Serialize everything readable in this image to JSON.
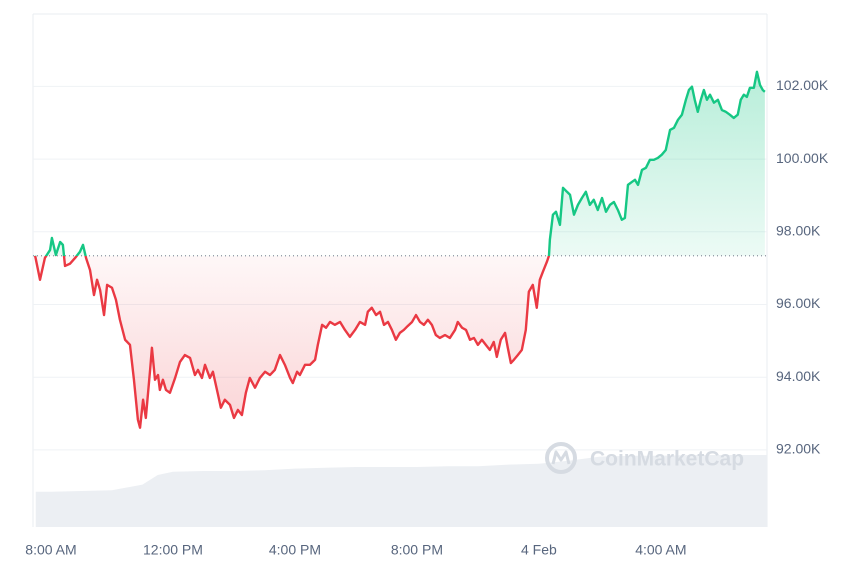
{
  "chart_data": {
    "type": "line",
    "xlim": [
      -0.59,
      23.48
    ],
    "xticks": [
      {
        "value": 0,
        "label": "8:00 AM"
      },
      {
        "value": 4,
        "label": "12:00 PM"
      },
      {
        "value": 8,
        "label": "4:00 PM"
      },
      {
        "value": 12,
        "label": "8:00 PM"
      },
      {
        "value": 16,
        "label": "4 Feb"
      },
      {
        "value": 20,
        "label": "4:00 AM"
      }
    ],
    "ylim": [
      89.88,
      103.99
    ],
    "yticks": [
      {
        "value": 92,
        "label": "92.00K"
      },
      {
        "value": 94,
        "label": "94.00K"
      },
      {
        "value": 96,
        "label": "96.00K"
      },
      {
        "value": 98,
        "label": "98.00K"
      },
      {
        "value": 100,
        "label": "100.00K"
      },
      {
        "value": 102,
        "label": "102.00K"
      }
    ],
    "grid": true,
    "baseline": 97.34,
    "up_color": "#16c784",
    "down_color": "#ea3943",
    "watermark": "CoinMarketCap",
    "x": [
      -0.52,
      -0.36,
      -0.2,
      -0.03,
      0.03,
      0.16,
      0.3,
      0.39,
      0.46,
      0.62,
      0.79,
      0.95,
      1.05,
      1.15,
      1.28,
      1.41,
      1.51,
      1.61,
      1.74,
      1.84,
      2.0,
      2.13,
      2.26,
      2.43,
      2.59,
      2.72,
      2.85,
      2.92,
      3.02,
      3.11,
      3.25,
      3.31,
      3.41,
      3.51,
      3.57,
      3.67,
      3.77,
      3.9,
      4.07,
      4.23,
      4.39,
      4.56,
      4.72,
      4.82,
      4.95,
      5.05,
      5.21,
      5.31,
      5.48,
      5.57,
      5.7,
      5.87,
      6.0,
      6.13,
      6.26,
      6.39,
      6.52,
      6.69,
      6.85,
      7.02,
      7.18,
      7.34,
      7.51,
      7.67,
      7.84,
      7.93,
      8.07,
      8.16,
      8.33,
      8.49,
      8.66,
      8.75,
      8.89,
      9.02,
      9.15,
      9.31,
      9.48,
      9.64,
      9.8,
      9.97,
      10.13,
      10.3,
      10.39,
      10.52,
      10.66,
      10.79,
      10.92,
      11.05,
      11.18,
      11.31,
      11.44,
      11.57,
      11.7,
      11.84,
      11.97,
      12.1,
      12.23,
      12.36,
      12.49,
      12.62,
      12.75,
      12.92,
      13.08,
      13.25,
      13.34,
      13.48,
      13.61,
      13.74,
      13.87,
      14.0,
      14.13,
      14.26,
      14.39,
      14.52,
      14.62,
      14.75,
      14.89,
      14.98,
      15.08,
      15.18,
      15.31,
      15.44,
      15.57,
      15.67,
      15.8,
      15.93,
      16.03,
      16.13,
      16.26,
      16.33,
      16.36,
      16.46,
      16.56,
      16.69,
      16.79,
      16.92,
      17.02,
      17.15,
      17.28,
      17.41,
      17.54,
      17.67,
      17.8,
      17.93,
      18.07,
      18.2,
      18.33,
      18.46,
      18.59,
      18.72,
      18.82,
      18.92,
      19.05,
      19.15,
      19.25,
      19.38,
      19.51,
      19.64,
      19.77,
      19.9,
      20.03,
      20.16,
      20.3,
      20.43,
      20.56,
      20.69,
      20.82,
      20.92,
      21.02,
      21.11,
      21.21,
      21.31,
      21.41,
      21.51,
      21.61,
      21.74,
      21.87,
      22.0,
      22.13,
      22.26,
      22.39,
      22.52,
      22.62,
      22.72,
      22.82,
      22.92,
      23.05,
      23.15,
      23.25,
      23.34,
      23.41
    ],
    "values": [
      97.34,
      96.68,
      97.28,
      97.5,
      97.83,
      97.36,
      97.72,
      97.64,
      97.06,
      97.12,
      97.28,
      97.45,
      97.64,
      97.28,
      96.95,
      96.26,
      96.68,
      96.4,
      95.71,
      96.54,
      96.46,
      96.13,
      95.58,
      95.03,
      94.89,
      93.93,
      92.83,
      92.61,
      93.38,
      92.88,
      94.2,
      94.81,
      93.93,
      94.06,
      93.65,
      93.93,
      93.65,
      93.57,
      93.98,
      94.42,
      94.61,
      94.53,
      94.06,
      94.2,
      93.98,
      94.34,
      93.98,
      94.15,
      93.51,
      93.16,
      93.38,
      93.24,
      92.88,
      93.1,
      92.96,
      93.57,
      93.98,
      93.71,
      93.98,
      94.15,
      94.06,
      94.2,
      94.61,
      94.34,
      93.98,
      93.84,
      94.15,
      94.06,
      94.34,
      94.34,
      94.48,
      94.89,
      95.44,
      95.36,
      95.52,
      95.44,
      95.52,
      95.3,
      95.11,
      95.3,
      95.52,
      95.44,
      95.8,
      95.91,
      95.71,
      95.8,
      95.44,
      95.52,
      95.3,
      95.03,
      95.22,
      95.3,
      95.41,
      95.52,
      95.71,
      95.52,
      95.44,
      95.58,
      95.44,
      95.16,
      95.08,
      95.16,
      95.08,
      95.3,
      95.52,
      95.36,
      95.3,
      95.03,
      95.08,
      94.89,
      95.03,
      94.89,
      94.75,
      94.97,
      94.56,
      95.03,
      95.22,
      94.81,
      94.39,
      94.48,
      94.61,
      94.75,
      95.3,
      96.35,
      96.54,
      95.91,
      96.68,
      96.9,
      97.17,
      97.34,
      97.78,
      98.47,
      98.55,
      98.19,
      99.21,
      99.1,
      99.02,
      98.47,
      98.74,
      98.93,
      99.1,
      98.74,
      98.88,
      98.6,
      98.93,
      98.55,
      98.74,
      98.82,
      98.6,
      98.33,
      98.38,
      99.29,
      99.37,
      99.43,
      99.29,
      99.7,
      99.76,
      99.98,
      99.98,
      100.03,
      100.12,
      100.25,
      100.8,
      100.86,
      101.08,
      101.22,
      101.63,
      101.9,
      101.99,
      101.63,
      101.3,
      101.63,
      101.9,
      101.63,
      101.77,
      101.55,
      101.63,
      101.35,
      101.3,
      101.22,
      101.13,
      101.22,
      101.63,
      101.77,
      101.71,
      101.96,
      101.96,
      102.4,
      102.04,
      101.9,
      101.85
    ],
    "volume": {
      "color": "#eceff3",
      "ylim": [
        0,
        100
      ],
      "x": [
        -0.5,
        0,
        1,
        2,
        3,
        3.5,
        4,
        5,
        6,
        7,
        8,
        9,
        10,
        11,
        12,
        13,
        14,
        15,
        16,
        17,
        18,
        19,
        20,
        21,
        22,
        23,
        23.5
      ],
      "values": [
        44,
        44,
        45,
        46,
        53,
        65,
        69,
        70,
        70,
        71,
        73,
        74,
        75,
        75,
        75,
        76,
        76,
        78,
        79,
        83,
        88,
        89,
        89,
        90,
        90,
        90,
        90
      ]
    }
  }
}
